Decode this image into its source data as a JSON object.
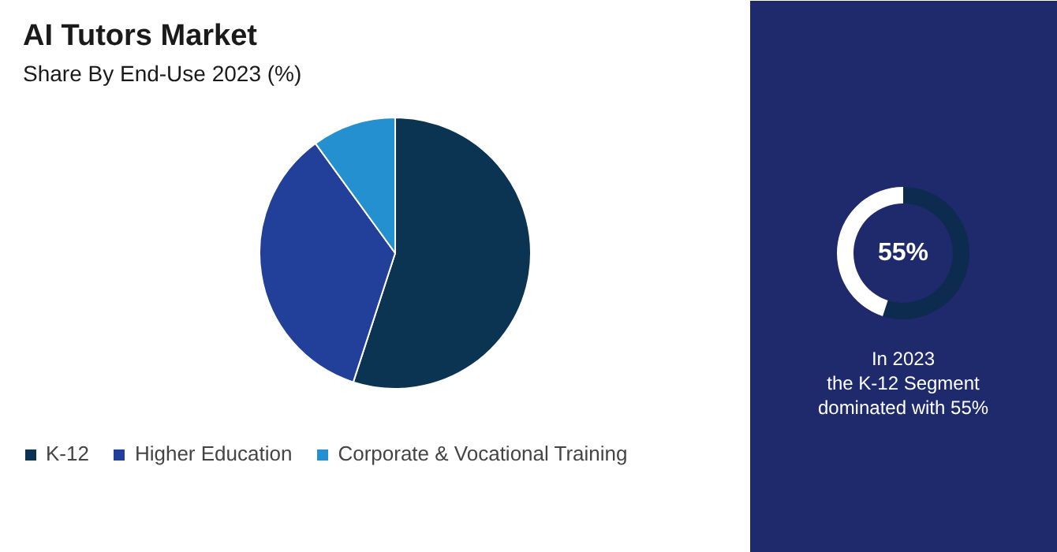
{
  "chart_data": [
    {
      "type": "pie",
      "title": "AI Tutors Market",
      "subtitle": "Share By End-Use 2023 (%)",
      "categories": [
        "K-12",
        "Higher Education",
        "Corporate & Vocational Training"
      ],
      "values": [
        55,
        35,
        10
      ],
      "colors": [
        "#0b3352",
        "#22409a",
        "#2590d0"
      ],
      "legend": "bottom"
    },
    {
      "type": "donut",
      "categories": [
        null,
        null
      ],
      "values": [
        55,
        45
      ],
      "colors": [
        "#0d2a4f",
        "#ffffff"
      ],
      "value_labels": [
        "55%",
        null
      ],
      "annotations": [
        "In 2023\nthe K-12 Segment\ndominated with 55%"
      ]
    }
  ]
}
